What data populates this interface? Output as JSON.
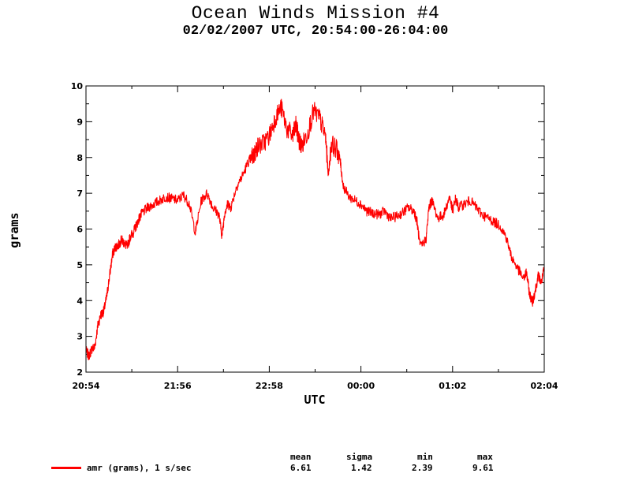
{
  "title": "Ocean Winds Mission #4",
  "subtitle": "02/02/2007  UTC, 20:54:00-26:04:00",
  "series_color": "#ff0000",
  "legend": {
    "label": "amr (grams), 1 s/sec"
  },
  "stats": {
    "headers": [
      "mean",
      "sigma",
      "min",
      "max"
    ],
    "values": [
      "6.61",
      "1.42",
      "2.39",
      "9.61"
    ]
  },
  "chart_data": {
    "type": "line",
    "title": "Ocean Winds Mission #4",
    "subtitle": "02/02/2007  UTC, 20:54:00-26:04:00",
    "xlabel": "UTC",
    "ylabel": "grams",
    "xlim": [
      "20:54",
      "26:04"
    ],
    "ylim": [
      2,
      10
    ],
    "xticks": [
      "20:54",
      "21:56",
      "22:58",
      "00:00",
      "01:02",
      "02:04"
    ],
    "yticks": [
      2,
      3,
      4,
      5,
      6,
      7,
      8,
      9,
      10
    ],
    "grid": false,
    "series": [
      {
        "name": "amr (grams), 1 s/sec",
        "x": [
          "20:54",
          "20:56",
          "20:58",
          "21:00",
          "21:02",
          "21:04",
          "21:06",
          "21:08",
          "21:10",
          "21:12",
          "21:14",
          "21:16",
          "21:18",
          "21:20",
          "21:22",
          "21:24",
          "21:26",
          "21:28",
          "21:30",
          "21:32",
          "21:36",
          "21:40",
          "21:44",
          "21:48",
          "21:52",
          "21:56",
          "22:00",
          "22:04",
          "22:08",
          "22:12",
          "22:16",
          "22:20",
          "22:24",
          "22:26",
          "22:28",
          "22:30",
          "22:32",
          "22:36",
          "22:40",
          "22:44",
          "22:46",
          "22:48",
          "22:50",
          "22:54",
          "22:58",
          "23:02",
          "23:06",
          "23:10",
          "23:14",
          "23:16",
          "23:18",
          "23:20",
          "23:24",
          "23:28",
          "23:32",
          "23:36",
          "23:38",
          "23:40",
          "23:44",
          "23:46",
          "23:48",
          "23:52",
          "23:56",
          "24:00",
          "24:04",
          "24:08",
          "24:12",
          "24:16",
          "24:20",
          "24:24",
          "24:28",
          "24:32",
          "24:36",
          "24:38",
          "24:40",
          "24:44",
          "24:46",
          "24:48",
          "24:52",
          "24:56",
          "25:00",
          "25:02",
          "25:04",
          "25:06",
          "25:10",
          "25:14",
          "25:18",
          "25:22",
          "25:26",
          "25:30",
          "25:34",
          "25:38",
          "25:42",
          "25:46",
          "25:50",
          "25:52",
          "25:54",
          "25:56",
          "25:58",
          "26:00",
          "26:02",
          "26:04"
        ],
        "values": [
          2.6,
          2.45,
          2.65,
          2.7,
          3.3,
          3.6,
          3.7,
          4.1,
          4.7,
          5.3,
          5.5,
          5.55,
          5.7,
          5.6,
          5.5,
          5.8,
          5.9,
          6.1,
          6.3,
          6.45,
          6.6,
          6.7,
          6.8,
          6.9,
          6.85,
          6.8,
          6.95,
          6.7,
          5.9,
          6.8,
          7.0,
          6.6,
          6.4,
          5.8,
          6.5,
          6.7,
          6.6,
          7.2,
          7.5,
          7.9,
          8.0,
          8.1,
          8.3,
          8.4,
          8.6,
          9.1,
          9.4,
          8.8,
          8.6,
          8.9,
          8.5,
          8.3,
          8.7,
          9.3,
          9.1,
          8.6,
          7.5,
          8.4,
          8.2,
          7.9,
          7.2,
          6.9,
          6.8,
          6.7,
          6.5,
          6.45,
          6.4,
          6.5,
          6.3,
          6.35,
          6.45,
          6.6,
          6.5,
          6.2,
          5.5,
          5.7,
          6.6,
          6.8,
          6.3,
          6.4,
          6.9,
          6.5,
          6.85,
          6.6,
          6.7,
          6.8,
          6.6,
          6.4,
          6.3,
          6.2,
          6.1,
          5.8,
          5.2,
          4.9,
          4.6,
          4.8,
          4.2,
          3.95,
          4.3,
          4.7,
          4.5,
          4.9
        ]
      }
    ],
    "stats": {
      "mean": 6.61,
      "sigma": 1.42,
      "min": 2.39,
      "max": 9.61
    }
  }
}
